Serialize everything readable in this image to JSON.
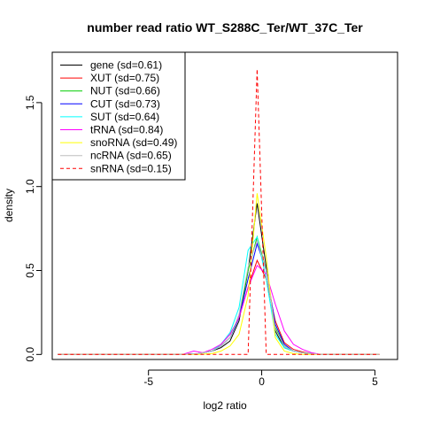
{
  "chart_data": {
    "type": "line",
    "title": "number read ratio WT_S288C_Ter/WT_37C_Ter",
    "xlabel": "log2 ratio",
    "ylabel": "density",
    "xlim": [
      -9.25,
      6.0
    ],
    "ylim": [
      -0.03,
      1.8
    ],
    "xticks": [
      -5,
      0,
      5
    ],
    "yticks": [
      0.0,
      0.5,
      1.0,
      1.5
    ],
    "xtick_labels": [
      "-5",
      "0",
      "5"
    ],
    "ytick_labels": [
      "0.0",
      "0.5",
      "1.0",
      "1.5"
    ],
    "legend_position": "top-left",
    "series": [
      {
        "name": "gene (sd=0.61)",
        "color": "#000000",
        "dash": false,
        "x": [
          -9.0,
          -3.5,
          -2.8,
          -2.2,
          -1.8,
          -1.4,
          -1.0,
          -0.6,
          -0.2,
          0.2,
          0.6,
          1.0,
          1.4,
          1.8,
          2.2,
          2.6,
          5.2
        ],
        "y": [
          0.0,
          0.0,
          0.005,
          0.02,
          0.04,
          0.08,
          0.2,
          0.5,
          0.9,
          0.52,
          0.14,
          0.04,
          0.02,
          0.01,
          0.005,
          0.0,
          0.0
        ]
      },
      {
        "name": "XUT (sd=0.75)",
        "color": "#ff0000",
        "dash": false,
        "x": [
          -9.0,
          -3.5,
          -2.8,
          -2.2,
          -1.8,
          -1.4,
          -1.0,
          -0.6,
          -0.2,
          0.2,
          0.6,
          1.0,
          1.4,
          1.8,
          2.2,
          2.6,
          5.2
        ],
        "y": [
          0.0,
          0.0,
          0.005,
          0.02,
          0.06,
          0.12,
          0.22,
          0.4,
          0.56,
          0.45,
          0.2,
          0.07,
          0.03,
          0.015,
          0.005,
          0.0,
          0.0
        ]
      },
      {
        "name": "NUT (sd=0.66)",
        "color": "#00cd00",
        "dash": false,
        "x": [
          -9.0,
          -3.5,
          -2.8,
          -2.2,
          -1.8,
          -1.4,
          -1.0,
          -0.6,
          -0.2,
          0.2,
          0.6,
          1.0,
          1.4,
          1.8,
          2.2,
          2.6,
          5.2
        ],
        "y": [
          0.0,
          0.0,
          0.005,
          0.02,
          0.05,
          0.1,
          0.22,
          0.5,
          0.7,
          0.5,
          0.16,
          0.05,
          0.02,
          0.01,
          0.005,
          0.0,
          0.0
        ]
      },
      {
        "name": "CUT (sd=0.73)",
        "color": "#0000ff",
        "dash": false,
        "x": [
          -9.0,
          -3.5,
          -2.8,
          -2.2,
          -1.8,
          -1.4,
          -1.0,
          -0.6,
          -0.2,
          0.2,
          0.6,
          1.0,
          1.4,
          1.8,
          2.2,
          2.6,
          5.2
        ],
        "y": [
          0.0,
          0.0,
          0.005,
          0.02,
          0.05,
          0.1,
          0.22,
          0.45,
          0.66,
          0.5,
          0.18,
          0.06,
          0.02,
          0.01,
          0.005,
          0.0,
          0.0
        ]
      },
      {
        "name": "SUT (sd=0.64)",
        "color": "#00ffff",
        "dash": false,
        "x": [
          -9.0,
          -3.5,
          -2.8,
          -2.2,
          -1.8,
          -1.4,
          -1.0,
          -0.6,
          -0.2,
          0.2,
          0.6,
          1.0,
          1.4,
          1.8,
          2.2,
          2.6,
          5.2
        ],
        "y": [
          0.0,
          0.0,
          0.005,
          0.02,
          0.06,
          0.13,
          0.28,
          0.62,
          0.7,
          0.45,
          0.12,
          0.04,
          0.02,
          0.01,
          0.005,
          0.0,
          0.0
        ]
      },
      {
        "name": "tRNA (sd=0.84)",
        "color": "#ff00ff",
        "dash": false,
        "x": [
          -9.0,
          -3.5,
          -3.0,
          -2.6,
          -2.2,
          -1.8,
          -1.4,
          -1.0,
          -0.6,
          -0.2,
          0.2,
          0.6,
          1.0,
          1.4,
          1.8,
          2.2,
          2.6,
          5.2
        ],
        "y": [
          0.0,
          0.0,
          0.02,
          0.01,
          0.03,
          0.06,
          0.12,
          0.22,
          0.4,
          0.53,
          0.48,
          0.3,
          0.14,
          0.06,
          0.03,
          0.01,
          0.0,
          0.0
        ]
      },
      {
        "name": "snoRNA (sd=0.49)",
        "color": "#ffff00",
        "dash": false,
        "x": [
          -9.0,
          -2.8,
          -2.2,
          -1.8,
          -1.4,
          -1.0,
          -0.6,
          -0.2,
          0.2,
          0.6,
          1.0,
          1.4,
          1.8,
          5.2
        ],
        "y": [
          0.0,
          0.0,
          0.005,
          0.02,
          0.05,
          0.12,
          0.35,
          0.96,
          0.58,
          0.1,
          0.02,
          0.005,
          0.0,
          0.0
        ]
      },
      {
        "name": "ncRNA (sd=0.65)",
        "color": "#bebebe",
        "dash": false,
        "x": [
          -9.0,
          -3.5,
          -2.8,
          -2.2,
          -1.8,
          -1.4,
          -1.0,
          -0.6,
          -0.2,
          0.2,
          0.6,
          1.0,
          1.4,
          1.8,
          2.2,
          2.6,
          5.2
        ],
        "y": [
          0.0,
          0.0,
          0.005,
          0.02,
          0.05,
          0.1,
          0.24,
          0.52,
          0.68,
          0.5,
          0.15,
          0.05,
          0.02,
          0.01,
          0.005,
          0.0,
          0.0
        ]
      },
      {
        "name": "snRNA (sd=0.15)",
        "color": "#ff0000",
        "dash": true,
        "x": [
          -9.0,
          -1.0,
          -0.6,
          -0.2,
          0.2,
          0.6,
          5.2
        ],
        "y": [
          0.0,
          0.0,
          0.0,
          1.7,
          0.0,
          0.0,
          0.0
        ]
      }
    ]
  }
}
